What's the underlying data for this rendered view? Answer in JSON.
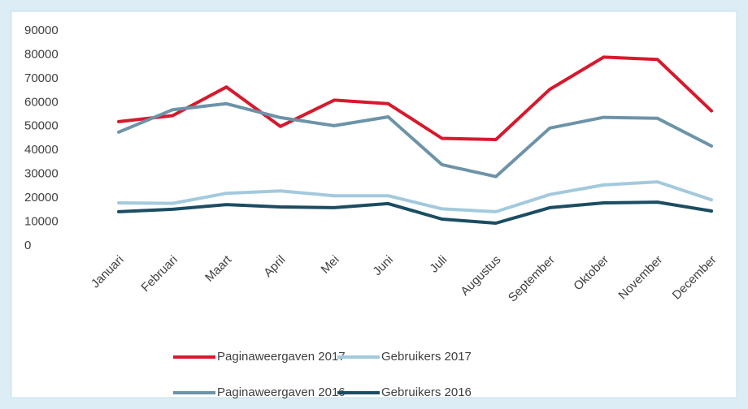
{
  "chart_data": {
    "type": "line",
    "categories": [
      "Januari",
      "Februari",
      "Maart",
      "April",
      "Mei",
      "Juni",
      "Juli",
      "Augustus",
      "September",
      "Oktober",
      "November",
      "December"
    ],
    "series": [
      {
        "name": "Paginaweergaven 2017",
        "color": "#d7192d",
        "values": [
          52000,
          54500,
          66500,
          50000,
          61000,
          59500,
          45000,
          44500,
          65500,
          79000,
          78000,
          56500
        ]
      },
      {
        "name": "Gebruikers 2017",
        "color": "#a3c9dd",
        "values": [
          18000,
          17800,
          22000,
          23000,
          21000,
          21000,
          15500,
          14300,
          21500,
          25500,
          26800,
          19300
        ]
      },
      {
        "name": "Paginaweergaven 2016",
        "color": "#6d93a8",
        "values": [
          47600,
          57000,
          59500,
          53700,
          50300,
          54000,
          34000,
          29000,
          49300,
          53800,
          53400,
          41800
        ]
      },
      {
        "name": "Gebruikers 2016",
        "color": "#1b4d62",
        "values": [
          14300,
          15300,
          17300,
          16300,
          16000,
          17700,
          11200,
          9500,
          16000,
          18000,
          18300,
          14600
        ]
      }
    ],
    "ylim": [
      0,
      90000
    ],
    "yticks": [
      0,
      10000,
      20000,
      30000,
      40000,
      50000,
      60000,
      70000,
      80000,
      90000
    ],
    "grid": false,
    "legend": "bottom"
  }
}
